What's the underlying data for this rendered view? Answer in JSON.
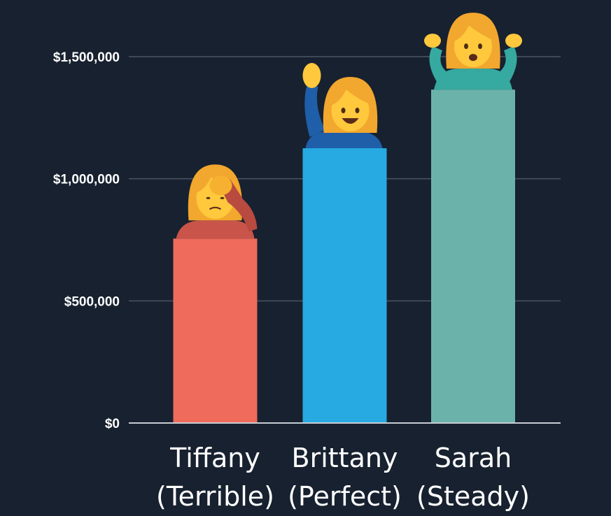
{
  "chart_data": {
    "type": "bar",
    "title": "",
    "xlabel": "",
    "ylabel": "",
    "ylim": [
      0,
      1500000
    ],
    "yticks": [
      0,
      500000,
      1000000,
      1500000
    ],
    "ytick_labels": [
      "$0",
      "$500,000",
      "$1,000,000",
      "$1,500,000"
    ],
    "grid": true,
    "categories": [
      "Tiffany\n(Terrible)",
      "Brittany\n(Perfect)",
      "Sarah\n(Steady)"
    ],
    "category_lines": [
      [
        "Tiffany",
        "(Terrible)"
      ],
      [
        "Brittany",
        "(Perfect)"
      ],
      [
        "Sarah",
        "(Steady)"
      ]
    ],
    "values": [
      755000,
      1125000,
      1365000
    ],
    "colors": [
      "#ef6b5b",
      "#27aae2",
      "#6bb3aa"
    ],
    "icons": [
      "person-facepalming-emoji",
      "person-raising-hand-emoji",
      "person-shrugging-emoji"
    ]
  }
}
